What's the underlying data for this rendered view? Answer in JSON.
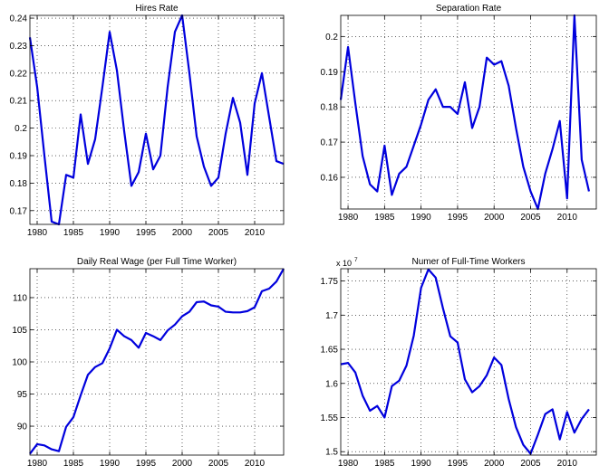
{
  "chart_data": [
    {
      "type": "line",
      "title": "Hires Rate",
      "xlabel": "",
      "ylabel": "",
      "xlim": [
        1979,
        2014
      ],
      "ylim": [
        0.165,
        0.241
      ],
      "xticks": [
        1980,
        1985,
        1990,
        1995,
        2000,
        2005,
        2010
      ],
      "yticks": [
        0.17,
        0.18,
        0.19,
        0.2,
        0.21,
        0.22,
        0.23,
        0.24
      ],
      "ytick_labels": [
        "0.17",
        "0.18",
        "0.19",
        "0.2",
        "0.21",
        "0.22",
        "0.23",
        "0.24"
      ],
      "grid": true,
      "line_color": "#0000dd",
      "x": [
        1979,
        1980,
        1981,
        1982,
        1983,
        1984,
        1985,
        1986,
        1987,
        1988,
        1989,
        1990,
        1991,
        1992,
        1993,
        1994,
        1995,
        1996,
        1997,
        1998,
        1999,
        2000,
        2001,
        2002,
        2003,
        2004,
        2005,
        2006,
        2007,
        2008,
        2009,
        2010,
        2011,
        2012,
        2013,
        2014
      ],
      "y": [
        0.233,
        0.215,
        0.19,
        0.166,
        0.165,
        0.183,
        0.182,
        0.205,
        0.187,
        0.196,
        0.215,
        0.235,
        0.221,
        0.199,
        0.179,
        0.184,
        0.198,
        0.185,
        0.19,
        0.215,
        0.235,
        0.241,
        0.22,
        0.197,
        0.186,
        0.179,
        0.182,
        0.198,
        0.211,
        0.202,
        0.183,
        0.209,
        0.22,
        0.204,
        0.188,
        0.187
      ]
    },
    {
      "type": "line",
      "title": "Separation Rate",
      "xlabel": "",
      "ylabel": "",
      "xlim": [
        1979,
        2014
      ],
      "ylim": [
        0.151,
        0.206
      ],
      "xticks": [
        1980,
        1985,
        1990,
        1995,
        2000,
        2005,
        2010
      ],
      "yticks": [
        0.16,
        0.17,
        0.18,
        0.19,
        0.2
      ],
      "ytick_labels": [
        "0.16",
        "0.17",
        "0.18",
        "0.19",
        "0.2"
      ],
      "grid": true,
      "line_color": "#0000dd",
      "x": [
        1979,
        1980,
        1981,
        1982,
        1983,
        1984,
        1985,
        1986,
        1987,
        1988,
        1989,
        1990,
        1991,
        1992,
        1993,
        1994,
        1995,
        1996,
        1997,
        1998,
        1999,
        2000,
        2001,
        2002,
        2003,
        2004,
        2005,
        2006,
        2007,
        2008,
        2009,
        2010,
        2011,
        2012,
        2013
      ],
      "y": [
        0.182,
        0.197,
        0.181,
        0.166,
        0.158,
        0.156,
        0.169,
        0.155,
        0.161,
        0.163,
        0.169,
        0.175,
        0.182,
        0.185,
        0.18,
        0.18,
        0.178,
        0.187,
        0.174,
        0.18,
        0.194,
        0.192,
        0.193,
        0.186,
        0.174,
        0.163,
        0.156,
        0.151,
        0.161,
        0.168,
        0.176,
        0.154,
        0.206,
        0.165,
        0.156
      ]
    },
    {
      "type": "line",
      "title": "Daily Real Wage (per Full Time Worker)",
      "xlabel": "",
      "ylabel": "",
      "xlim": [
        1979,
        2014
      ],
      "ylim": [
        85.5,
        114.5
      ],
      "xticks": [
        1980,
        1985,
        1990,
        1995,
        2000,
        2005,
        2010
      ],
      "yticks": [
        90,
        95,
        100,
        105,
        110
      ],
      "ytick_labels": [
        "90",
        "95",
        "100",
        "105",
        "110"
      ],
      "grid": true,
      "line_color": "#0000dd",
      "x": [
        1979,
        1980,
        1981,
        1982,
        1983,
        1984,
        1985,
        1986,
        1987,
        1988,
        1989,
        1990,
        1991,
        1992,
        1993,
        1994,
        1995,
        1996,
        1997,
        1998,
        1999,
        2000,
        2001,
        2002,
        2003,
        2004,
        2005,
        2006,
        2007,
        2008,
        2009,
        2010,
        2011,
        2012,
        2013,
        2014
      ],
      "y": [
        85.7,
        87.2,
        87.0,
        86.4,
        86.1,
        89.9,
        91.4,
        94.8,
        98.0,
        99.2,
        99.8,
        102.1,
        105.0,
        104.0,
        103.4,
        102.2,
        104.5,
        104.0,
        103.4,
        104.9,
        105.8,
        107.1,
        107.8,
        109.3,
        109.4,
        108.8,
        108.6,
        107.8,
        107.7,
        107.7,
        107.9,
        108.5,
        111.0,
        111.4,
        112.5,
        114.5
      ]
    },
    {
      "type": "line",
      "title": "Numer of Full-Time Workers",
      "xlabel": "",
      "ylabel": "",
      "scale_label": "x 10",
      "scale_exponent": "7",
      "xlim": [
        1979,
        2014
      ],
      "ylim": [
        1.495,
        1.768
      ],
      "xticks": [
        1980,
        1985,
        1990,
        1995,
        2000,
        2005,
        2010
      ],
      "yticks": [
        1.5,
        1.55,
        1.6,
        1.65,
        1.7,
        1.75
      ],
      "ytick_labels": [
        "1.5",
        "1.55",
        "1.6",
        "1.65",
        "1.7",
        "1.75"
      ],
      "grid": true,
      "line_color": "#0000dd",
      "x": [
        1979,
        1980,
        1981,
        1982,
        1983,
        1984,
        1985,
        1986,
        1987,
        1988,
        1989,
        1990,
        1991,
        1992,
        1993,
        1994,
        1995,
        1996,
        1997,
        1998,
        1999,
        2000,
        2001,
        2002,
        2003,
        2004,
        2005,
        2006,
        2007,
        2008,
        2009,
        2010,
        2011,
        2012,
        2013
      ],
      "y": [
        1.628,
        1.63,
        1.616,
        1.582,
        1.56,
        1.567,
        1.55,
        1.596,
        1.604,
        1.626,
        1.67,
        1.74,
        1.767,
        1.755,
        1.71,
        1.669,
        1.66,
        1.606,
        1.587,
        1.596,
        1.612,
        1.638,
        1.627,
        1.577,
        1.536,
        1.51,
        1.497,
        1.525,
        1.555,
        1.562,
        1.518,
        1.558,
        1.528,
        1.548,
        1.562
      ]
    }
  ]
}
